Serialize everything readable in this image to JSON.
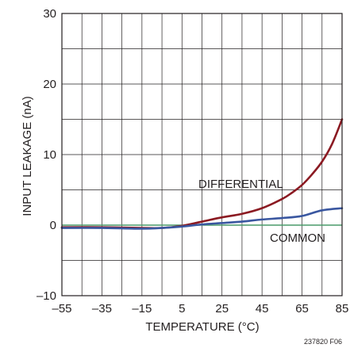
{
  "figure_id": "237820 F06",
  "chart_data": {
    "type": "line",
    "xlabel": "TEMPERATURE (°C)",
    "ylabel": "INPUT LEAKAGE (nA)",
    "xlim": [
      -55,
      85
    ],
    "ylim": [
      -10,
      30
    ],
    "x_ticks": [
      "–55",
      "–35",
      "–15",
      "5",
      "25",
      "45",
      "65",
      "85"
    ],
    "y_ticks": [
      "–10",
      "0",
      "10",
      "20",
      "30"
    ],
    "grid": true,
    "colors": {
      "differential": "#8b1a22",
      "common": "#3a57a0",
      "zero_line": "#4a9a6a",
      "grid": "#231f20"
    },
    "series": [
      {
        "name": "DIFFERENTIAL",
        "x": [
          -55,
          -35,
          -15,
          -5,
          5,
          15,
          25,
          35,
          45,
          55,
          60,
          65,
          70,
          75,
          80,
          85
        ],
        "y": [
          -0.3,
          -0.3,
          -0.4,
          -0.4,
          -0.1,
          0.5,
          1.1,
          1.6,
          2.4,
          3.7,
          4.6,
          5.7,
          7.2,
          9.0,
          11.5,
          15.0
        ]
      },
      {
        "name": "COMMON",
        "x": [
          -55,
          -35,
          -15,
          -5,
          5,
          15,
          25,
          35,
          45,
          55,
          65,
          75,
          85
        ],
        "y": [
          -0.4,
          -0.4,
          -0.5,
          -0.4,
          -0.2,
          0.1,
          0.3,
          0.5,
          0.8,
          1.0,
          1.3,
          2.1,
          2.4
        ]
      }
    ]
  }
}
